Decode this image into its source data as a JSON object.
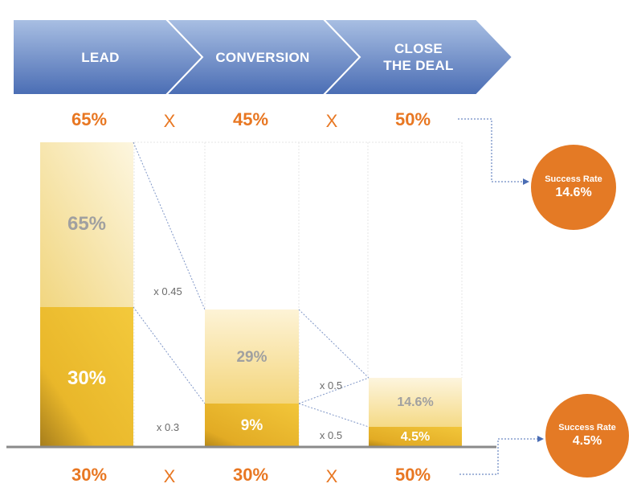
{
  "header": {
    "steps": [
      "LEAD",
      "CONVERSION",
      "CLOSE\nTHE DEAL"
    ]
  },
  "top_row": {
    "values": [
      "65%",
      "45%",
      "50%"
    ],
    "operators": [
      "X",
      "X"
    ]
  },
  "bottom_row": {
    "values": [
      "30%",
      "30%",
      "50%"
    ],
    "operators": [
      "X",
      "X"
    ]
  },
  "bars": {
    "lead": {
      "light_label": "65%",
      "dark_label": "30%"
    },
    "conversion": {
      "light_label": "29%",
      "dark_label": "9%"
    },
    "close": {
      "light_label": "14.6%",
      "dark_label": "4.5%"
    }
  },
  "multipliers": {
    "top_1": "x 0.45",
    "bottom_1": "x 0.3",
    "top_2": "x 0.5",
    "bottom_2": "x 0.5"
  },
  "success": {
    "top": {
      "title": "Success Rate",
      "value": "14.6%"
    },
    "bottom": {
      "title": "Success Rate",
      "value": "4.5%"
    }
  },
  "colors": {
    "header_top": "#9fb6dd",
    "header_bottom": "#4b6fb7",
    "accent": "#e87722",
    "gold_dark": "#d9a21a",
    "gold_light": "#f7e3a4",
    "circle": "#e47a25"
  }
}
